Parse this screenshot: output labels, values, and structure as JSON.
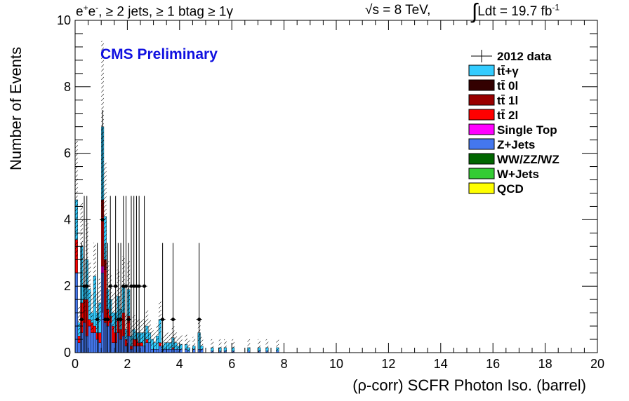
{
  "header": {
    "channel_main": "e",
    "channel_sup1": "+",
    "channel_mid": "e",
    "channel_sup2": "-",
    "channel_rest": ", ≥ 2 jets, ≥ 1 btag ≥ 1γ",
    "energy_sqrt": "√",
    "energy_rest": "s = 8 TeV,",
    "lumi_integral": "∫",
    "lumi_text": "Ldt = 19.7 fb",
    "lumi_sup": "-1"
  },
  "prelim_label": "CMS Preliminary",
  "chart_data": {
    "type": "bar",
    "stacked": true,
    "xlabel": "(ρ-corr) SCFR Photon Iso. (barrel)",
    "ylabel": "Number of Events",
    "xlim": [
      0,
      20
    ],
    "ylim": [
      0,
      10
    ],
    "x_ticks": [
      0,
      2,
      4,
      6,
      8,
      10,
      12,
      14,
      16,
      18,
      20
    ],
    "y_ticks": [
      0,
      2,
      4,
      6,
      8,
      10
    ],
    "bin_width": 0.1,
    "bin_centers": [
      0.05,
      0.15,
      0.25,
      0.35,
      0.45,
      0.55,
      0.65,
      0.75,
      0.85,
      0.95,
      1.05,
      1.15,
      1.25,
      1.35,
      1.45,
      1.55,
      1.65,
      1.75,
      1.85,
      1.95,
      2.05,
      2.15,
      2.25,
      2.35,
      2.45,
      2.55,
      2.65,
      2.75,
      2.85,
      2.95,
      3.05,
      3.15,
      3.25,
      3.35,
      3.45,
      3.55,
      3.65,
      3.75,
      3.85,
      3.95,
      4.05,
      4.25,
      4.35,
      4.55,
      4.75,
      4.85,
      5.25,
      5.55,
      5.75,
      6.05,
      6.65,
      7.05,
      7.35,
      7.75
    ],
    "series": [
      {
        "name": "QCD",
        "color": "#ffff00",
        "values": [
          0,
          0,
          0,
          0,
          0,
          0,
          0,
          0,
          0,
          0,
          0,
          0,
          0,
          0,
          0,
          0,
          0,
          0,
          0,
          0,
          0,
          0,
          0,
          0,
          0,
          0,
          0,
          0,
          0,
          0,
          0,
          0,
          0,
          0,
          0,
          0,
          0,
          0,
          0,
          0,
          0,
          0,
          0,
          0,
          0,
          0,
          0,
          0,
          0,
          0,
          0,
          0,
          0,
          0
        ]
      },
      {
        "name": "W+Jets",
        "color": "#33cc33",
        "values": [
          0,
          0,
          0,
          0,
          0,
          0,
          0,
          0,
          0,
          0,
          0,
          0,
          0,
          0,
          0,
          0,
          0,
          0,
          0,
          0,
          0,
          0,
          0,
          0,
          0,
          0,
          0,
          0,
          0,
          0,
          0,
          0,
          0,
          0,
          0,
          0,
          0,
          0,
          0,
          0,
          0,
          0,
          0,
          0,
          0,
          0,
          0,
          0,
          0,
          0,
          0,
          0,
          0,
          0
        ]
      },
      {
        "name": "WW/ZZ/WZ",
        "color": "#006600",
        "values": [
          0,
          0,
          0,
          0,
          0,
          0,
          0,
          0,
          0,
          0,
          0,
          0,
          0,
          0,
          0,
          0,
          0,
          0,
          0,
          0,
          0,
          0,
          0,
          0,
          0,
          0,
          0,
          0,
          0,
          0,
          0,
          0,
          0,
          0,
          0,
          0,
          0,
          0,
          0,
          0,
          0,
          0,
          0,
          0,
          0,
          0,
          0,
          0,
          0,
          0,
          0,
          0,
          0,
          0
        ]
      },
      {
        "name": "Z+Jets",
        "color": "#4477ee",
        "values": [
          2.4,
          0.3,
          0.6,
          0.9,
          0.5,
          0.8,
          0.6,
          0.6,
          0.4,
          0.3,
          2.4,
          0.9,
          0.8,
          0.9,
          0.3,
          0.3,
          0.6,
          0.4,
          0.5,
          0.2,
          0.5,
          0.1,
          0.2,
          0.2,
          0.2,
          0.2,
          0.2,
          0.3,
          0.3,
          0.1,
          0.1,
          0.1,
          0.2,
          0.1,
          0.1,
          0.1,
          0.1,
          0.1,
          0.1,
          0.1,
          0.1,
          0.1,
          0.05,
          0.1,
          0.1,
          0.1,
          0.05,
          0.05,
          0.05,
          0.05,
          0.05,
          0.05,
          0.05,
          0.05
        ]
      },
      {
        "name": "Single Top",
        "color": "#ff00ff",
        "values": [
          0,
          0,
          0,
          0,
          0,
          0,
          0,
          0,
          0,
          0,
          0.2,
          0,
          0,
          0,
          0,
          0,
          0,
          0,
          0,
          0,
          0,
          0,
          0,
          0,
          0,
          0,
          0,
          0,
          0,
          0,
          0,
          0,
          0,
          0,
          0,
          0,
          0,
          0,
          0,
          0,
          0,
          0,
          0,
          0,
          0,
          0,
          0,
          0,
          0,
          0,
          0,
          0,
          0,
          0
        ]
      },
      {
        "name": "tt̄ 2l",
        "color": "#ff0000",
        "values": [
          1.0,
          0.2,
          0.9,
          0.7,
          1.1,
          0.2,
          0.3,
          0.2,
          0.2,
          0.3,
          1.5,
          1.6,
          0.5,
          0.2,
          0.5,
          0.3,
          0.4,
          0.3,
          0.7,
          0.2,
          0.4,
          0.1,
          0.2,
          0.2,
          0.1,
          0.1,
          0.0,
          0.1,
          0.0,
          0.0,
          0.0,
          0.0,
          0.1,
          0.0,
          0.0,
          0.0,
          0.0,
          0.05,
          0.0,
          0.0,
          0.0,
          0.0,
          0.0,
          0.0,
          0.0,
          0.0,
          0.0,
          0.0,
          0.0,
          0.0,
          0.0,
          0.0,
          0.0,
          0.0
        ]
      },
      {
        "name": "tt̄ 1l",
        "color": "#990000",
        "values": [
          0,
          0,
          0,
          0,
          0,
          0,
          0,
          0,
          0,
          0,
          0.5,
          0.3,
          0,
          0,
          0,
          0,
          0,
          0,
          0,
          0,
          0.2,
          0,
          0,
          0,
          0,
          0,
          0,
          0,
          0,
          0,
          0,
          0,
          0,
          0,
          0,
          0,
          0,
          0,
          0,
          0,
          0,
          0,
          0,
          0,
          0,
          0,
          0,
          0,
          0,
          0,
          0,
          0,
          0,
          0
        ]
      },
      {
        "name": "tt̄ 0l",
        "color": "#330000",
        "values": [
          0,
          0,
          0,
          0,
          0,
          0,
          0,
          0,
          0,
          0,
          0,
          0,
          0,
          0,
          0,
          0,
          0,
          0,
          0,
          0,
          0,
          0,
          0,
          0,
          0,
          0,
          0,
          0,
          0,
          0,
          0,
          0,
          0,
          0,
          0,
          0,
          0,
          0,
          0,
          0,
          0,
          0,
          0,
          0,
          0,
          0,
          0,
          0,
          0,
          0,
          0,
          0,
          0,
          0
        ]
      },
      {
        "name": "tt̄+γ",
        "color": "#33ccff",
        "values": [
          1.2,
          0.4,
          1.7,
          0.4,
          1.2,
          0.9,
          0.3,
          1.5,
          0.6,
          0.9,
          2.2,
          1.3,
          0.6,
          0.5,
          0.4,
          0.6,
          0.7,
          0.6,
          0.8,
          0.3,
          0.8,
          0.3,
          0.3,
          0.2,
          0.3,
          0.3,
          0.4,
          0.4,
          0.3,
          0.3,
          0.2,
          0.4,
          0.7,
          0.1,
          0.2,
          0.2,
          0.2,
          0.3,
          0.2,
          0.1,
          0.15,
          0.15,
          0.1,
          0.1,
          0.5,
          0.1,
          0.1,
          0.1,
          0.1,
          0.1,
          0.1,
          0.1,
          0.1,
          0.1
        ]
      }
    ],
    "data_x": [
      0.25,
      0.35,
      0.45,
      0.85,
      1.05,
      1.15,
      1.25,
      1.35,
      1.55,
      1.65,
      1.75,
      1.85,
      1.95,
      2.05,
      2.15,
      2.25,
      2.35,
      2.45,
      2.65,
      3.35,
      3.75,
      4.75
    ],
    "data_y": [
      1,
      2,
      2,
      1,
      4,
      1,
      1,
      2,
      2,
      1,
      1,
      2,
      2,
      1,
      2,
      2,
      2,
      2,
      2,
      1,
      1,
      1
    ],
    "legend": {
      "placement": "top-right",
      "entries": [
        {
          "label": "2012 data",
          "kind": "marker"
        },
        {
          "label": "tt̄+γ",
          "color": "#33ccff"
        },
        {
          "label": "tt̄ 0l",
          "color": "#330000"
        },
        {
          "label": "tt̄ 1l",
          "color": "#990000"
        },
        {
          "label": "tt̄ 2l",
          "color": "#ff0000"
        },
        {
          "label": "Single Top",
          "color": "#ff00ff"
        },
        {
          "label": "Z+Jets",
          "color": "#4477ee"
        },
        {
          "label": "WW/ZZ/WZ",
          "color": "#006600"
        },
        {
          "label": "W+Jets",
          "color": "#33cc33"
        },
        {
          "label": "QCD",
          "color": "#ffff00"
        }
      ]
    }
  }
}
